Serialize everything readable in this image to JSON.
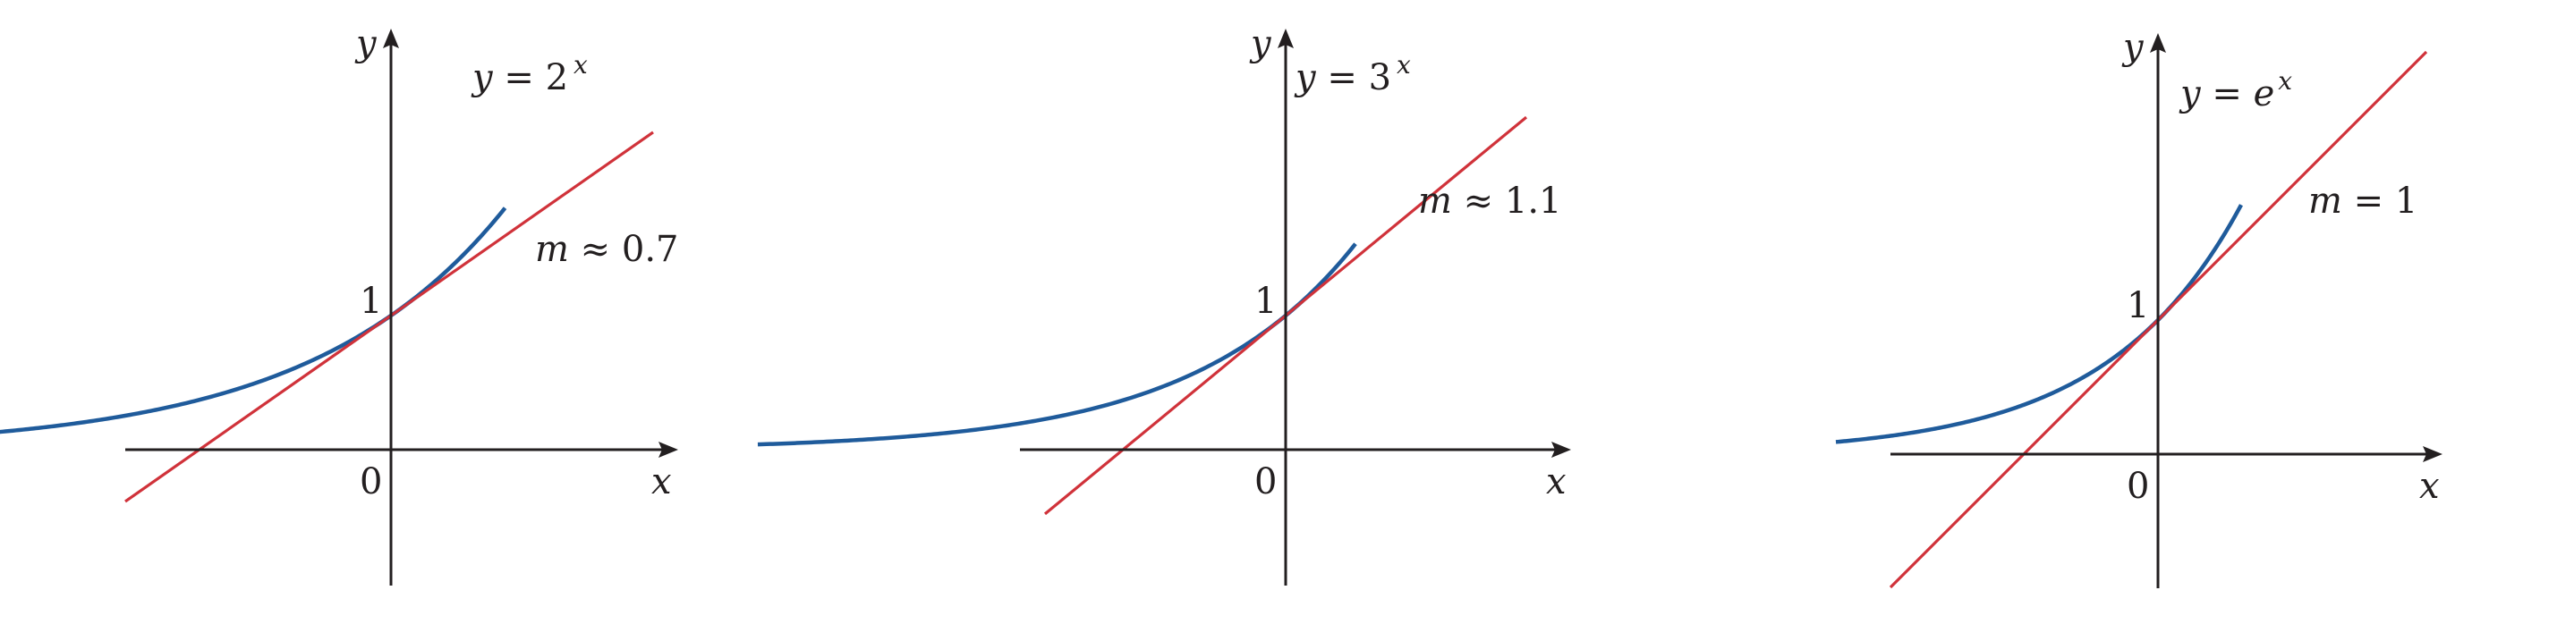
{
  "panels": [
    {
      "curve_label": {
        "lhs": "y",
        "eq": " = ",
        "base": "2",
        "exp": "x"
      },
      "slope_label": {
        "m": "m",
        "rel": " ≈ ",
        "value": "0.7"
      },
      "intercept_label": "1",
      "origin_label": "0",
      "x_axis_label": "x",
      "y_axis_label": "y",
      "function": "2^x",
      "slope_at_0": 0.7
    },
    {
      "curve_label": {
        "lhs": "y",
        "eq": " = ",
        "base": "3",
        "exp": "x"
      },
      "slope_label": {
        "m": "m",
        "rel": " ≈ ",
        "value": "1.1"
      },
      "intercept_label": "1",
      "origin_label": "0",
      "x_axis_label": "x",
      "y_axis_label": "y",
      "function": "3^x",
      "slope_at_0": 1.1
    },
    {
      "curve_label": {
        "lhs": "y",
        "eq": " = ",
        "base": "e",
        "exp": "x"
      },
      "slope_label": {
        "m": "m",
        "rel": " = ",
        "value": "1"
      },
      "intercept_label": "1",
      "origin_label": "0",
      "x_axis_label": "x",
      "y_axis_label": "y",
      "function": "e^x",
      "slope_at_0": 1
    }
  ],
  "colors": {
    "curve": "#1f5b9b",
    "tangent": "#d0323a",
    "axis": "#231f20"
  }
}
